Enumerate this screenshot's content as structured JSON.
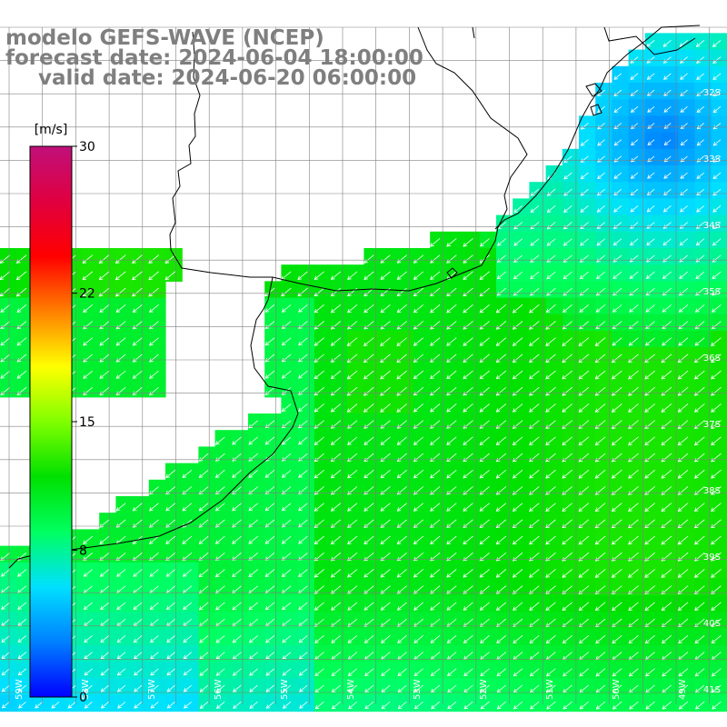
{
  "title": {
    "model": "modelo GEFS-WAVE (NCEP)",
    "forecast": "forecast date: 2024-06-04 18:00:00",
    "valid": "valid date: 2024-06-20 06:00:00"
  },
  "colorbar": {
    "unit": "[m/s]",
    "ticks": [
      {
        "value": 30,
        "label": "30"
      },
      {
        "value": 22,
        "label": "22"
      },
      {
        "value": 15,
        "label": "15"
      },
      {
        "value": 8,
        "label": "8"
      },
      {
        "value": 0,
        "label": "0"
      }
    ],
    "min": 0,
    "max": 30,
    "colors": [
      "#0000ff",
      "#0080ff",
      "#00e0ff",
      "#00ff60",
      "#00e000",
      "#80ff00",
      "#ffff00",
      "#ff8000",
      "#ff0000",
      "#e00040",
      "#c0107a"
    ]
  },
  "map": {
    "lon_range": [
      -59.4,
      -48.6
    ],
    "lat_range": [
      -41.6,
      -30.6
    ],
    "lat_labels": [
      "32S",
      "33S",
      "34S",
      "35S",
      "36S",
      "37S",
      "38S",
      "39S",
      "40S",
      "41S"
    ],
    "lon_labels": [
      "59W",
      "58W",
      "57W",
      "56W",
      "55W",
      "54W",
      "53W",
      "52W",
      "51W",
      "50W",
      "49W"
    ],
    "grid_color": "#808080",
    "coast_color": "#000000",
    "arrow_color": "#ffffff",
    "wind_direction": "from north-east"
  }
}
